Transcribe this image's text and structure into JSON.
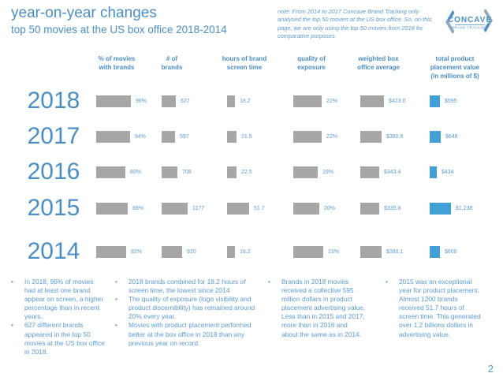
{
  "colors": {
    "accent_blue": "#4a8ec6",
    "text_blue": "#5b9bd5",
    "bar_gray": "#a7a7a7",
    "bar_blue": "#42a0d6"
  },
  "header": {
    "title": "year-on-year changes",
    "subtitle": "top 50 movies at the US box office 2018-2014",
    "note": "note: From 2014 to 2017 Concave Brand Tracking only analysed the top 50 movies at the US box office. So, on this page, we are only using the top 50 movies from 2018 for comparative purposes.",
    "logo_line1": "CONCAVE",
    "logo_line2": "BRAND TRACKING"
  },
  "chart_data": {
    "type": "bar",
    "orientation": "horizontal",
    "title": "year-on-year changes — top 50 movies at the US box office 2018-2014",
    "categories": [
      "2018",
      "2017",
      "2016",
      "2015",
      "2014"
    ],
    "columns": [
      {
        "header": "% of movies with brands",
        "header_lines": [
          "% of movies",
          "with brands"
        ],
        "values": [
          96,
          94,
          80,
          88,
          82
        ],
        "labels": [
          "96%",
          "94%",
          "80%",
          "88%",
          "82%"
        ],
        "bar_color": "gray"
      },
      {
        "header": "# of brands",
        "header_lines": [
          "# of",
          "brands"
        ],
        "values": [
          627,
          597,
          708,
          1177,
          920
        ],
        "labels": [
          "627",
          "597",
          "708",
          "1177",
          "920"
        ],
        "bar_color": "gray"
      },
      {
        "header": "hours of brand screen time",
        "header_lines": [
          "hours of brand",
          "screen time"
        ],
        "values": [
          18.2,
          21.5,
          22.5,
          51.7,
          18.2
        ],
        "labels": [
          "18.2",
          "21.5",
          "22.5",
          "51.7",
          "18.2"
        ],
        "bar_color": "gray"
      },
      {
        "header": "quality of exposure",
        "header_lines": [
          "quality of",
          "exposure"
        ],
        "values": [
          22,
          22,
          19,
          20,
          23
        ],
        "labels": [
          "22%",
          "22%",
          "19%",
          "20%",
          "23%"
        ],
        "bar_color": "gray"
      },
      {
        "header": "weighted box office average",
        "header_lines": [
          "weighted box",
          "office average"
        ],
        "values": [
          423.0,
          380.8,
          343.4,
          335.8,
          380.1
        ],
        "labels": [
          "$423.0",
          "$380.8",
          "$343.4",
          "$335.8",
          "$380.1"
        ],
        "bar_color": "gray"
      },
      {
        "header": "total product placement value (in millions of $)",
        "header_lines": [
          "total product",
          "placement value",
          "(in millions of $)"
        ],
        "values": [
          595,
          648,
          434,
          1238,
          600
        ],
        "labels": [
          "$595",
          "$648",
          "$434",
          "$1,238",
          "$600"
        ],
        "bar_color": "blue"
      }
    ]
  },
  "bullet_columns": [
    {
      "items": [
        "In 2018, 96% of movies had at least one brand appear on screen, a higher percentage than in recent years.",
        "627 different brands appeared in the top 50 movies at the US box office in 2018."
      ]
    },
    {
      "items": [
        "2018 brands combined for 18.2 hours of screen time, the lowest since 2014",
        "The quality of exposure (logo visibility and product discernibility) has remained around 20% every year.",
        "Movies with product placement performed better at the box office in 2018 than any previous year on record."
      ]
    },
    {
      "items": [
        "Brands in 2018 movies received a collective 595 million dollars in product placement advertising value. Less than in 2015 and 2017, more than in 2016 and about the same as in 2014."
      ]
    },
    {
      "items": [
        "2015 was an exceptional year for product placement. Almost 1200 brands received 51.7 hours of screen time. This generated over 1.2 billions dollars in advertising value."
      ]
    }
  ],
  "page_number": "2"
}
